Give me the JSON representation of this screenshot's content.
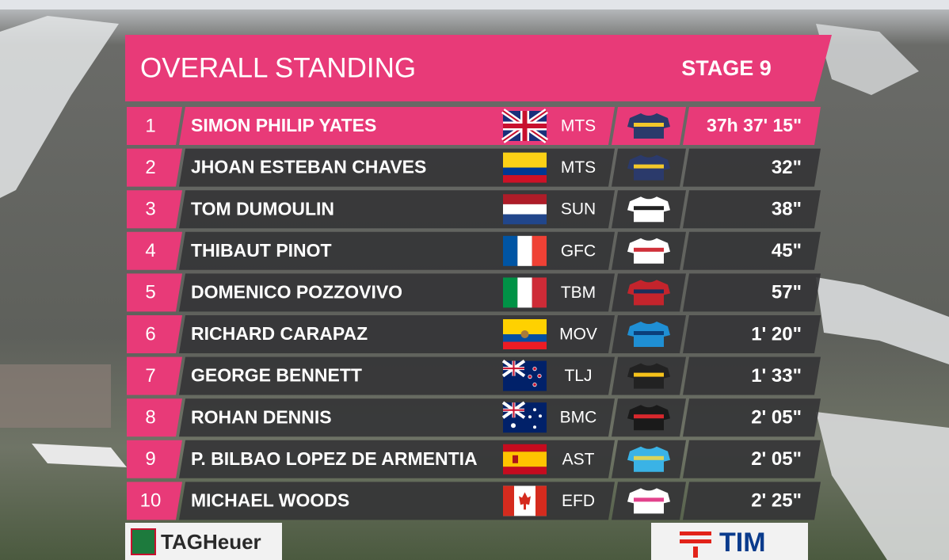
{
  "header": {
    "title": "OVERALL STANDING",
    "stage": "STAGE 9"
  },
  "table": {
    "rows": [
      [
        "1",
        "SIMON PHILIP YATES",
        "MTS",
        "37h 37' 15\""
      ],
      [
        "2",
        "JHOAN ESTEBAN CHAVES",
        "MTS",
        "32\""
      ],
      [
        "3",
        "TOM DUMOULIN",
        "SUN",
        "38\""
      ],
      [
        "4",
        "THIBAUT PINOT",
        "GFC",
        "45\""
      ],
      [
        "5",
        "DOMENICO POZZOVIVO",
        "TBM",
        "57\""
      ],
      [
        "6",
        "RICHARD CARAPAZ",
        "MOV",
        "1' 20\""
      ],
      [
        "7",
        "GEORGE BENNETT",
        "TLJ",
        "1' 33\""
      ],
      [
        "8",
        "ROHAN DENNIS",
        "BMC",
        "2' 05\""
      ],
      [
        "9",
        "P. BILBAO LOPEZ DE ARMENTIA",
        "AST",
        "2' 05\""
      ],
      [
        "10",
        "MICHAEL WOODS",
        "EFD",
        "2' 25\""
      ]
    ]
  },
  "sponsors": {
    "left": "TAGHeuer",
    "right": "TIM"
  }
}
